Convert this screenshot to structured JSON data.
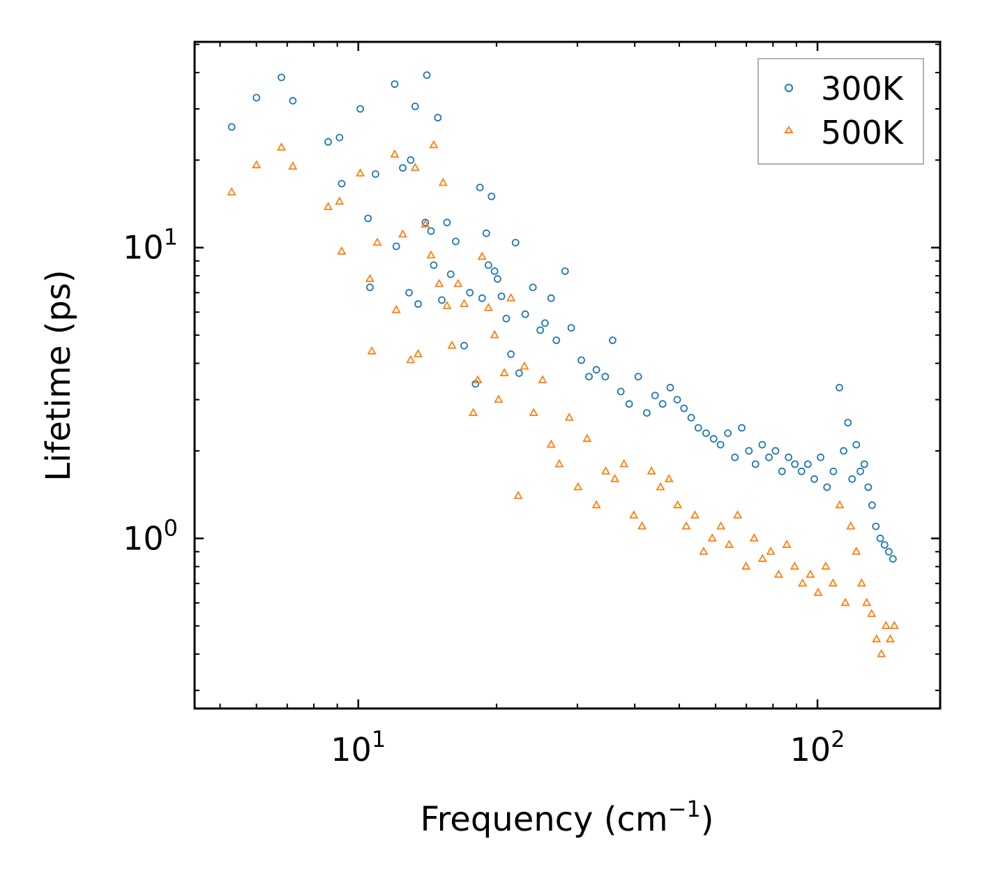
{
  "chart_data": {
    "type": "scatter",
    "title": "",
    "xlabel": "Frequency (cm",
    "xlabel_sup": "−1",
    "xlabel_suffix": ")",
    "ylabel": "Lifetime (ps)",
    "xscale": "log",
    "yscale": "log",
    "xlim": [
      4.4,
      185
    ],
    "ylim": [
      0.26,
      51
    ],
    "x_ticks": [
      {
        "value": 10,
        "base": "10",
        "exp": "1"
      },
      {
        "value": 100,
        "base": "10",
        "exp": "2"
      }
    ],
    "y_ticks": [
      {
        "value": 1,
        "base": "10",
        "exp": "0"
      },
      {
        "value": 10,
        "base": "10",
        "exp": "1"
      }
    ],
    "legend_position": "top-right",
    "series": [
      {
        "name": "300K",
        "color": "#1f77b4",
        "marker": "circle",
        "x": [
          5.3,
          6.0,
          6.8,
          7.2,
          8.6,
          9.1,
          9.2,
          10.1,
          10.5,
          10.6,
          10.9,
          12.0,
          12.1,
          12.5,
          12.9,
          13.0,
          13.3,
          13.5,
          14.0,
          14.1,
          14.4,
          14.6,
          14.9,
          15.2,
          15.6,
          15.9,
          16.3,
          17.0,
          17.5,
          18.0,
          18.4,
          18.6,
          19.0,
          19.2,
          19.5,
          19.8,
          20.1,
          20.5,
          21.0,
          21.5,
          22.0,
          22.4,
          23.1,
          24.0,
          24.9,
          25.5,
          26.3,
          27.0,
          28.2,
          29.1,
          30.6,
          31.8,
          33.0,
          34.5,
          35.8,
          37.3,
          38.9,
          40.7,
          42.5,
          44.3,
          46.0,
          47.8,
          49.5,
          51.2,
          53.1,
          55.0,
          57.2,
          59.4,
          61.5,
          63.8,
          66.1,
          68.4,
          70.9,
          73.3,
          75.8,
          78.4,
          81.0,
          83.7,
          86.5,
          89.3,
          92.3,
          95.3,
          98.4,
          101.6,
          104.9,
          108.3,
          111.6,
          114.0,
          116.5,
          119.0,
          121.5,
          124.0,
          126.5,
          129.0,
          131.5,
          134.0,
          137.0,
          140.0,
          143.0,
          146.0
        ],
        "y": [
          26.0,
          32.8,
          38.5,
          32.0,
          23.1,
          23.9,
          16.6,
          30.0,
          12.6,
          7.3,
          17.9,
          36.5,
          10.1,
          18.8,
          7.0,
          20.0,
          30.6,
          6.4,
          12.2,
          39.2,
          11.4,
          8.7,
          28.0,
          6.6,
          12.2,
          8.1,
          10.5,
          4.6,
          7.0,
          3.4,
          16.1,
          6.7,
          11.2,
          8.7,
          15.0,
          8.3,
          7.8,
          6.8,
          5.7,
          4.3,
          10.4,
          3.7,
          5.9,
          7.3,
          5.2,
          5.5,
          6.7,
          4.8,
          8.3,
          5.3,
          4.1,
          3.6,
          3.8,
          3.6,
          4.8,
          3.2,
          2.9,
          3.6,
          2.7,
          3.1,
          2.9,
          3.3,
          3.0,
          2.8,
          2.6,
          2.4,
          2.3,
          2.2,
          2.1,
          2.3,
          1.9,
          2.4,
          2.0,
          1.8,
          2.1,
          1.9,
          2.0,
          1.7,
          1.9,
          1.8,
          1.7,
          1.8,
          1.6,
          1.9,
          1.5,
          1.7,
          3.3,
          2.0,
          2.5,
          1.6,
          2.1,
          1.7,
          1.8,
          1.5,
          1.3,
          1.1,
          1.0,
          0.95,
          0.9,
          0.85
        ]
      },
      {
        "name": "500K",
        "color": "#ff7f0e",
        "marker": "triangle",
        "x": [
          5.3,
          6.0,
          6.8,
          7.2,
          8.6,
          9.1,
          9.2,
          10.1,
          10.6,
          10.7,
          11.0,
          12.0,
          12.1,
          12.5,
          13.0,
          13.3,
          13.5,
          14.0,
          14.4,
          14.6,
          15.0,
          15.3,
          15.6,
          16.0,
          16.5,
          17.0,
          17.8,
          18.2,
          18.6,
          19.2,
          19.8,
          20.2,
          20.8,
          21.5,
          22.3,
          23.0,
          24.1,
          25.2,
          26.3,
          27.4,
          28.8,
          30.1,
          31.5,
          33.0,
          34.6,
          36.2,
          37.9,
          39.8,
          41.5,
          43.5,
          45.5,
          47.5,
          49.6,
          51.8,
          54.1,
          56.5,
          59.0,
          61.6,
          64.2,
          67.0,
          69.9,
          72.8,
          75.9,
          79.1,
          82.3,
          85.7,
          89.2,
          92.8,
          96.5,
          100.3,
          104.2,
          108.1,
          111.8,
          115.0,
          118.2,
          121.5,
          124.8,
          128.0,
          131.2,
          134.5,
          137.8,
          141.0,
          144.0,
          147.0
        ],
        "y": [
          15.5,
          19.2,
          22.1,
          19.0,
          13.8,
          14.4,
          9.7,
          18.0,
          7.8,
          4.4,
          10.4,
          20.9,
          6.1,
          11.1,
          4.1,
          18.8,
          4.3,
          12.0,
          9.4,
          22.5,
          7.5,
          16.7,
          6.3,
          4.6,
          7.5,
          6.4,
          2.7,
          3.5,
          9.3,
          6.2,
          5.0,
          3.0,
          3.7,
          6.7,
          1.4,
          3.9,
          2.7,
          3.5,
          2.1,
          1.8,
          2.6,
          1.5,
          2.2,
          1.3,
          1.7,
          1.6,
          1.8,
          1.2,
          1.1,
          1.7,
          1.5,
          1.6,
          1.3,
          1.1,
          1.2,
          0.9,
          1.0,
          1.1,
          0.95,
          1.2,
          0.8,
          1.0,
          0.85,
          0.9,
          0.75,
          0.95,
          0.8,
          0.7,
          0.75,
          0.65,
          0.8,
          0.7,
          1.3,
          0.6,
          1.1,
          0.9,
          0.7,
          0.6,
          0.55,
          0.45,
          0.4,
          0.5,
          0.45,
          0.5
        ]
      }
    ]
  }
}
